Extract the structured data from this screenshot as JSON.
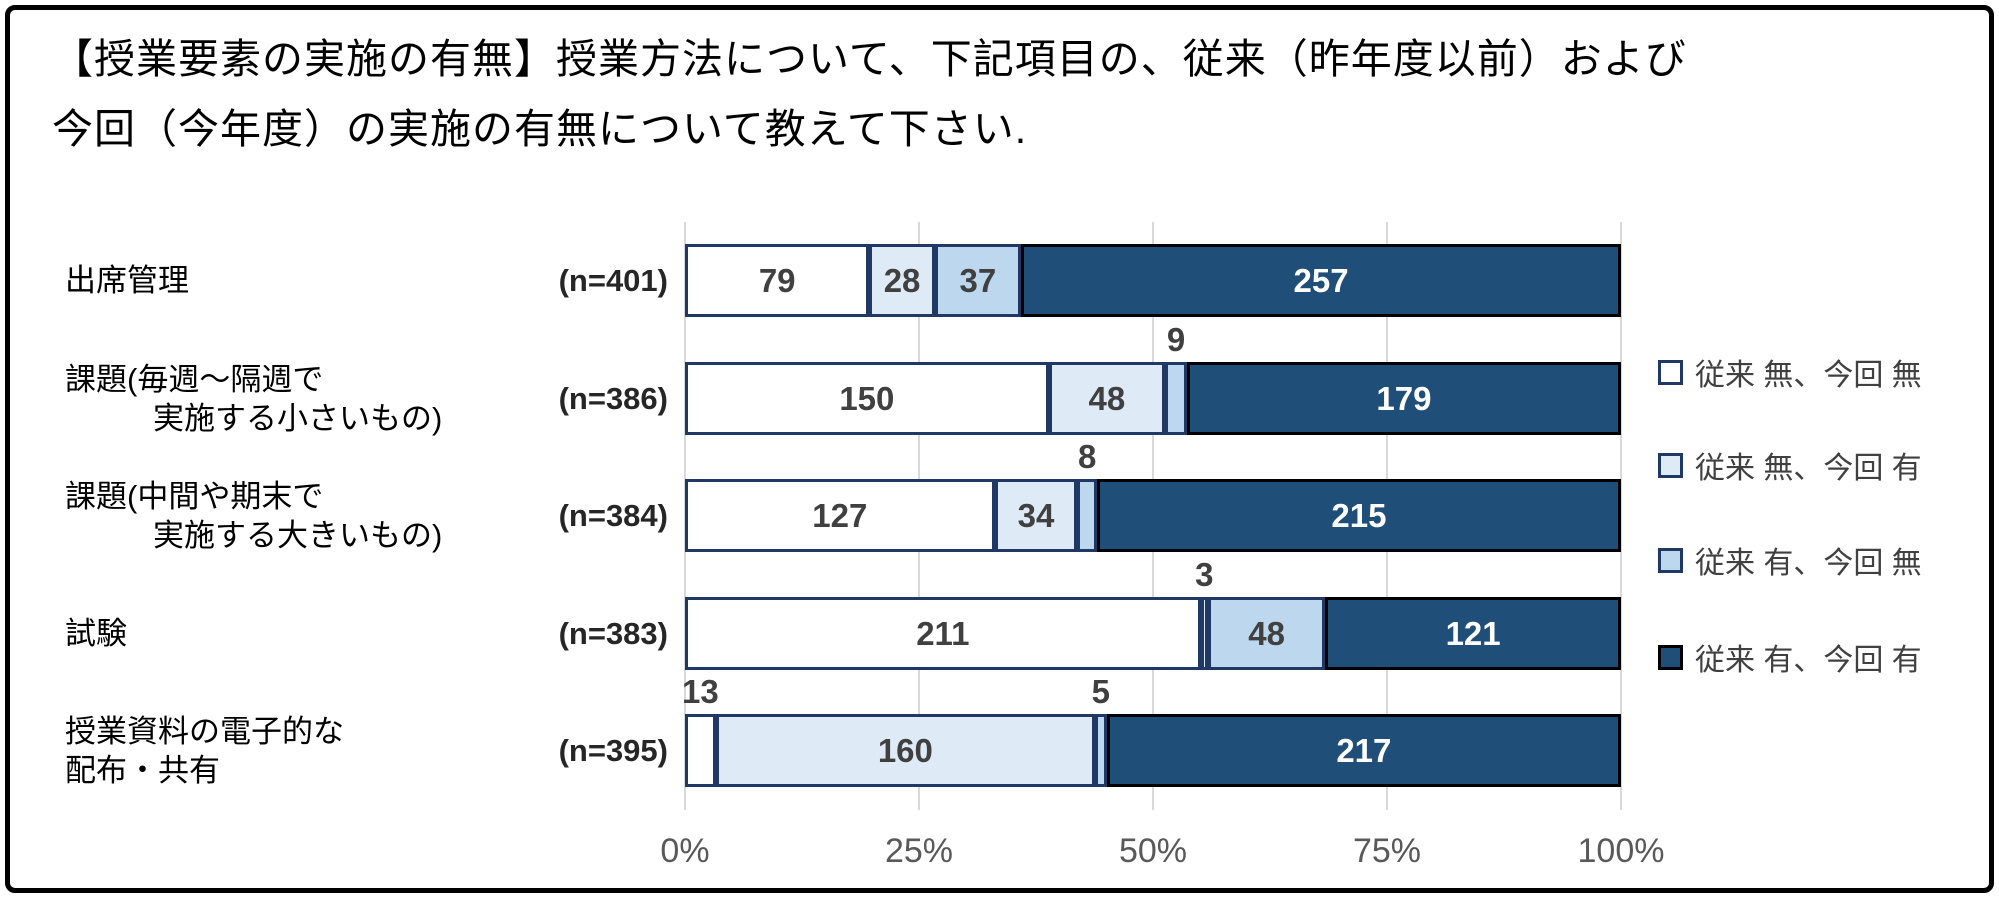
{
  "title": {
    "line1": "【授業要素の実施の有無】授業方法について、下記項目の、従来（昨年度以前）および",
    "line2": "今回（今年度）の実施の有無について教えて下さい."
  },
  "chart_data": {
    "type": "bar",
    "stacked": true,
    "orientation": "horizontal",
    "grid": true,
    "legend_position": "right",
    "x_axis": {
      "ticks": [
        "0%",
        "25%",
        "50%",
        "75%",
        "100%"
      ],
      "range_percent": [
        0,
        100
      ]
    },
    "series_legend": [
      {
        "label": "従来 無、今回 無",
        "color": "#FFFFFF",
        "border": "#203864",
        "text_color": "#404040"
      },
      {
        "label": "従来 無、今回 有",
        "color": "#DEEBF7",
        "border": "#203864",
        "text_color": "#404040"
      },
      {
        "label": "従来 有、今回 無",
        "color": "#BDD7EE",
        "border": "#203864",
        "text_color": "#404040"
      },
      {
        "label": "従来 有、今回 有",
        "color": "#1F4E79",
        "border": "#000000",
        "text_color": "#FFFFFF"
      }
    ],
    "rows": [
      {
        "category_lines": [
          "出席管理"
        ],
        "indent_second_line": false,
        "n_label": "(n=401)",
        "values": [
          79,
          28,
          37,
          257
        ],
        "callout_segments": []
      },
      {
        "category_lines": [
          "課題(毎週～隔週で",
          "実施する小さいもの)"
        ],
        "indent_second_line": true,
        "n_label": "(n=386)",
        "values": [
          150,
          48,
          9,
          179
        ],
        "callout_segments": [
          2
        ]
      },
      {
        "category_lines": [
          "課題(中間や期末で",
          "実施する大きいもの)"
        ],
        "indent_second_line": true,
        "n_label": "(n=384)",
        "values": [
          127,
          34,
          8,
          215
        ],
        "callout_segments": [
          2
        ]
      },
      {
        "category_lines": [
          "試験"
        ],
        "indent_second_line": false,
        "n_label": "(n=383)",
        "values": [
          211,
          3,
          48,
          121
        ],
        "callout_segments": [
          1
        ]
      },
      {
        "category_lines": [
          "授業資料の電子的な",
          "配布・共有"
        ],
        "indent_second_line": false,
        "n_label": "(n=395)",
        "values": [
          13,
          160,
          5,
          217
        ],
        "callout_segments": [
          0,
          2
        ]
      }
    ]
  }
}
